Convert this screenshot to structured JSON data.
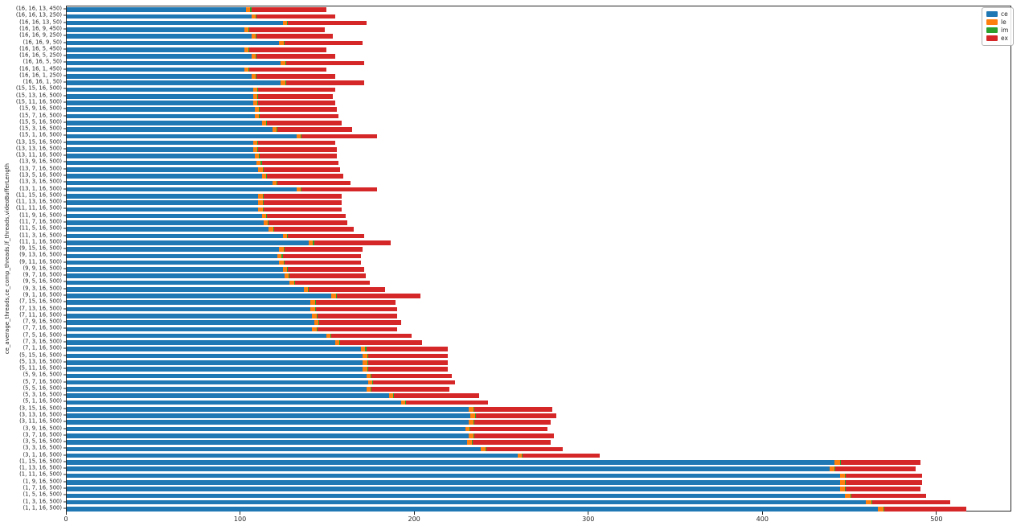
{
  "chart_data": {
    "type": "bar",
    "orientation": "horizontal",
    "stacked": true,
    "title": "",
    "xlabel": "",
    "ylabel": "ce_average_threads,ce_comp_threads,lf_threads,videoBufferLength",
    "xlim": [
      0,
      543
    ],
    "x_ticks": [
      0,
      100,
      200,
      300,
      400,
      500
    ],
    "grid": false,
    "series_order": [
      "ce",
      "le",
      "im",
      "ex"
    ],
    "colors": {
      "ce": "#1f77b4",
      "le": "#ff7f0e",
      "im": "#2ca02c",
      "ex": "#d62728"
    },
    "legend": {
      "position": "upper right",
      "entries": [
        {
          "label": "ce",
          "color": "#1f77b4"
        },
        {
          "label": "le",
          "color": "#ff7f0e"
        },
        {
          "label": "im",
          "color": "#2ca02c"
        },
        {
          "label": "ex",
          "color": "#d62728"
        }
      ]
    },
    "bars": [
      {
        "label": "(16, 16, 13, 450)",
        "ce": 103,
        "le": 2.5,
        "im": 0.5,
        "ex": 43
      },
      {
        "label": "(16, 16, 13, 250)",
        "ce": 106,
        "le": 2.5,
        "im": 0.5,
        "ex": 45
      },
      {
        "label": "(16, 16, 13, 50)",
        "ce": 124,
        "le": 2.5,
        "im": 0.5,
        "ex": 45
      },
      {
        "label": "(16, 16, 9, 450)",
        "ce": 102,
        "le": 2.5,
        "im": 0.5,
        "ex": 43
      },
      {
        "label": "(16, 16, 9, 250)",
        "ce": 106,
        "le": 2.5,
        "im": 0.5,
        "ex": 44
      },
      {
        "label": "(16, 16, 9, 50)",
        "ce": 122,
        "le": 2.5,
        "im": 0.5,
        "ex": 45
      },
      {
        "label": "(16, 16, 5, 450)",
        "ce": 102,
        "le": 2.5,
        "im": 0.5,
        "ex": 44
      },
      {
        "label": "(16, 16, 5, 250)",
        "ce": 106,
        "le": 2.5,
        "im": 0.5,
        "ex": 45
      },
      {
        "label": "(16, 16, 5, 50)",
        "ce": 123,
        "le": 2.5,
        "im": 0.5,
        "ex": 45
      },
      {
        "label": "(16, 16, 1, 450)",
        "ce": 102,
        "le": 2.5,
        "im": 0.5,
        "ex": 44
      },
      {
        "label": "(16, 16, 1, 250)",
        "ce": 106,
        "le": 2.5,
        "im": 0.5,
        "ex": 45
      },
      {
        "label": "(16, 16, 1, 50)",
        "ce": 123,
        "le": 2.5,
        "im": 0.5,
        "ex": 45
      },
      {
        "label": "(15, 15, 16, 500)",
        "ce": 107,
        "le": 2.5,
        "im": 0.5,
        "ex": 44
      },
      {
        "label": "(15, 13, 16, 500)",
        "ce": 107,
        "le": 2.5,
        "im": 0.5,
        "ex": 43
      },
      {
        "label": "(15, 11, 16, 500)",
        "ce": 107,
        "le": 2.5,
        "im": 0.5,
        "ex": 44
      },
      {
        "label": "(15, 9, 16, 500)",
        "ce": 108,
        "le": 2.5,
        "im": 0.5,
        "ex": 44
      },
      {
        "label": "(15, 7, 16, 500)",
        "ce": 108,
        "le": 2.5,
        "im": 0.5,
        "ex": 45
      },
      {
        "label": "(15, 5, 16, 500)",
        "ce": 112,
        "le": 2.5,
        "im": 0.5,
        "ex": 43
      },
      {
        "label": "(15, 3, 16, 500)",
        "ce": 118,
        "le": 2.5,
        "im": 0.5,
        "ex": 43
      },
      {
        "label": "(15, 1, 16, 500)",
        "ce": 132,
        "le": 2.5,
        "im": 0.5,
        "ex": 43
      },
      {
        "label": "(13, 15, 16, 500)",
        "ce": 107,
        "le": 2.5,
        "im": 0.5,
        "ex": 44
      },
      {
        "label": "(13, 13, 16, 500)",
        "ce": 107,
        "le": 2.5,
        "im": 0.5,
        "ex": 45
      },
      {
        "label": "(13, 11, 16, 500)",
        "ce": 108,
        "le": 2.5,
        "im": 0.5,
        "ex": 44
      },
      {
        "label": "(13, 9, 16, 500)",
        "ce": 109,
        "le": 2.5,
        "im": 0.5,
        "ex": 44
      },
      {
        "label": "(13, 7, 16, 500)",
        "ce": 110,
        "le": 2.5,
        "im": 0.5,
        "ex": 44
      },
      {
        "label": "(13, 5, 16, 500)",
        "ce": 112,
        "le": 2.5,
        "im": 0.5,
        "ex": 44
      },
      {
        "label": "(13, 3, 16, 500)",
        "ce": 118,
        "le": 2.5,
        "im": 0.5,
        "ex": 42
      },
      {
        "label": "(13, 1, 16, 500)",
        "ce": 132,
        "le": 2.5,
        "im": 0.5,
        "ex": 43
      },
      {
        "label": "(11, 15, 16, 500)",
        "ce": 110,
        "le": 2.5,
        "im": 0.5,
        "ex": 45
      },
      {
        "label": "(11, 13, 16, 500)",
        "ce": 110,
        "le": 2.5,
        "im": 0.5,
        "ex": 45
      },
      {
        "label": "(11, 11, 16, 500)",
        "ce": 110,
        "le": 2.5,
        "im": 0.5,
        "ex": 45
      },
      {
        "label": "(11, 9, 16, 500)",
        "ce": 112,
        "le": 2.5,
        "im": 0.5,
        "ex": 45
      },
      {
        "label": "(11, 7, 16, 500)",
        "ce": 113,
        "le": 2.5,
        "im": 0.5,
        "ex": 45
      },
      {
        "label": "(11, 5, 16, 500)",
        "ce": 116,
        "le": 2.5,
        "im": 0.5,
        "ex": 46
      },
      {
        "label": "(11, 3, 16, 500)",
        "ce": 124,
        "le": 2.5,
        "im": 0.5,
        "ex": 44
      },
      {
        "label": "(11, 1, 16, 500)",
        "ce": 139,
        "le": 2.5,
        "im": 0.5,
        "ex": 44
      },
      {
        "label": "(9, 15, 16, 500)",
        "ce": 122,
        "le": 2.5,
        "im": 0.5,
        "ex": 45
      },
      {
        "label": "(9, 13, 16, 500)",
        "ce": 121,
        "le": 2.5,
        "im": 0.5,
        "ex": 45
      },
      {
        "label": "(9, 11, 16, 500)",
        "ce": 122,
        "le": 2.5,
        "im": 0.5,
        "ex": 44
      },
      {
        "label": "(9, 9, 16, 500)",
        "ce": 124,
        "le": 2.5,
        "im": 0.5,
        "ex": 44
      },
      {
        "label": "(9, 7, 16, 500)",
        "ce": 125,
        "le": 2.5,
        "im": 0.5,
        "ex": 44
      },
      {
        "label": "(9, 5, 16, 500)",
        "ce": 128,
        "le": 2.5,
        "im": 0.5,
        "ex": 43
      },
      {
        "label": "(9, 3, 16, 500)",
        "ce": 136,
        "le": 2.5,
        "im": 0.5,
        "ex": 44
      },
      {
        "label": "(9, 1, 16, 500)",
        "ce": 152,
        "le": 2.5,
        "im": 0.5,
        "ex": 48
      },
      {
        "label": "(7, 15, 16, 500)",
        "ce": 140,
        "le": 2.5,
        "im": 0.5,
        "ex": 46
      },
      {
        "label": "(7, 13, 16, 500)",
        "ce": 140,
        "le": 2.5,
        "im": 0.5,
        "ex": 47
      },
      {
        "label": "(7, 11, 16, 500)",
        "ce": 141,
        "le": 2.5,
        "im": 0.5,
        "ex": 46
      },
      {
        "label": "(7, 9, 16, 500)",
        "ce": 142,
        "le": 2.5,
        "im": 0.5,
        "ex": 47
      },
      {
        "label": "(7, 7, 16, 500)",
        "ce": 141,
        "le": 2.5,
        "im": 0.5,
        "ex": 46
      },
      {
        "label": "(7, 5, 16, 500)",
        "ce": 149,
        "le": 2.5,
        "im": 0.5,
        "ex": 46
      },
      {
        "label": "(7, 3, 16, 500)",
        "ce": 154,
        "le": 2.5,
        "im": 0.5,
        "ex": 47
      },
      {
        "label": "(7, 1, 16, 500)",
        "ce": 169,
        "le": 2.5,
        "im": 0.5,
        "ex": 47
      },
      {
        "label": "(5, 15, 16, 500)",
        "ce": 170,
        "le": 2.5,
        "im": 0.5,
        "ex": 46
      },
      {
        "label": "(5, 13, 16, 500)",
        "ce": 170,
        "le": 2.5,
        "im": 0.5,
        "ex": 46
      },
      {
        "label": "(5, 11, 16, 500)",
        "ce": 170,
        "le": 2.5,
        "im": 0.5,
        "ex": 46
      },
      {
        "label": "(5, 9, 16, 500)",
        "ce": 172,
        "le": 2.5,
        "im": 0.5,
        "ex": 46
      },
      {
        "label": "(5, 7, 16, 500)",
        "ce": 173,
        "le": 2.5,
        "im": 0.5,
        "ex": 47
      },
      {
        "label": "(5, 5, 16, 500)",
        "ce": 172,
        "le": 2.5,
        "im": 0.5,
        "ex": 45
      },
      {
        "label": "(5, 3, 16, 500)",
        "ce": 185,
        "le": 2.5,
        "im": 0.5,
        "ex": 49
      },
      {
        "label": "(5, 1, 16, 500)",
        "ce": 192,
        "le": 2.5,
        "im": 0.5,
        "ex": 47
      },
      {
        "label": "(3, 15, 16, 500)",
        "ce": 231,
        "le": 2.5,
        "im": 0.5,
        "ex": 45
      },
      {
        "label": "(3, 13, 16, 500)",
        "ce": 232,
        "le": 2.5,
        "im": 0.5,
        "ex": 46
      },
      {
        "label": "(3, 11, 16, 500)",
        "ce": 231,
        "le": 2.5,
        "im": 0.5,
        "ex": 44
      },
      {
        "label": "(3, 9, 16, 500)",
        "ce": 229,
        "le": 2.5,
        "im": 0.5,
        "ex": 44
      },
      {
        "label": "(3, 7, 16, 500)",
        "ce": 231,
        "le": 2.5,
        "im": 0.5,
        "ex": 46
      },
      {
        "label": "(3, 5, 16, 500)",
        "ce": 230,
        "le": 2.5,
        "im": 0.5,
        "ex": 45
      },
      {
        "label": "(3, 3, 16, 500)",
        "ce": 238,
        "le": 2.5,
        "im": 0.5,
        "ex": 44
      },
      {
        "label": "(3, 1, 16, 500)",
        "ce": 259,
        "le": 2.5,
        "im": 0.5,
        "ex": 44
      },
      {
        "label": "(1, 15, 16, 500)",
        "ce": 441,
        "le": 3,
        "im": 0.5,
        "ex": 46
      },
      {
        "label": "(1, 13, 16, 500)",
        "ce": 438,
        "le": 3,
        "im": 0.5,
        "ex": 46
      },
      {
        "label": "(1, 11, 16, 500)",
        "ce": 444,
        "le": 3,
        "im": 0.5,
        "ex": 44
      },
      {
        "label": "(1, 9, 16, 500)",
        "ce": 444,
        "le": 3,
        "im": 0.5,
        "ex": 44
      },
      {
        "label": "(1, 7, 16, 500)",
        "ce": 444,
        "le": 3,
        "im": 0.5,
        "ex": 43
      },
      {
        "label": "(1, 5, 16, 500)",
        "ce": 447,
        "le": 3,
        "im": 0.5,
        "ex": 43
      },
      {
        "label": "(1, 3, 16, 500)",
        "ce": 459,
        "le": 3,
        "im": 0.5,
        "ex": 45
      },
      {
        "label": "(1, 1, 16, 500)",
        "ce": 466,
        "le": 3,
        "im": 0.5,
        "ex": 47
      }
    ]
  }
}
